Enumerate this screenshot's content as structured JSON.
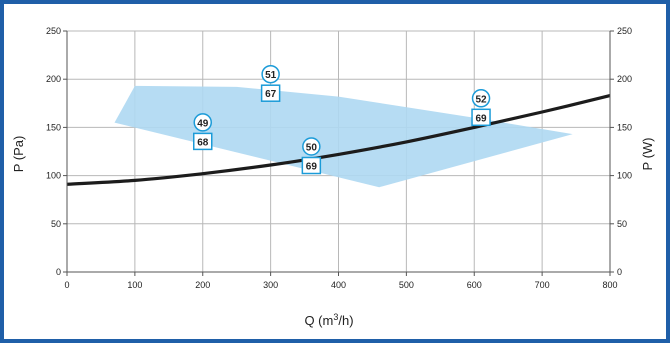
{
  "chart_data": {
    "type": "line",
    "xlabel_main": "Q (m",
    "xlabel_sup": "3",
    "xlabel_tail": "/h)",
    "ylabel_left": "P (Pa)",
    "ylabel_right": "P (W)",
    "xlim": [
      0,
      800
    ],
    "ylim_left": [
      0,
      250
    ],
    "ylim_right": [
      0,
      250
    ],
    "x_ticks": [
      "0",
      "100",
      "200",
      "300",
      "400",
      "500",
      "600",
      "700",
      "800"
    ],
    "y_ticks_left": [
      "0",
      "50",
      "100",
      "150",
      "200",
      "250"
    ],
    "y_ticks_right": [
      "0",
      "50",
      "100",
      "150",
      "200",
      "250"
    ],
    "grid": true,
    "curve": {
      "x": [
        0,
        100,
        200,
        300,
        400,
        500,
        600,
        700,
        800
      ],
      "y": [
        91,
        95,
        102,
        111,
        122,
        135,
        150,
        166,
        183
      ]
    },
    "region": {
      "x": [
        70,
        100,
        250,
        400,
        600,
        745,
        460
      ],
      "y": [
        155,
        193,
        192,
        182,
        160,
        143,
        88
      ]
    },
    "markers": [
      {
        "x": 200,
        "y": 150,
        "circle": "49",
        "box": "68"
      },
      {
        "x": 300,
        "y": 200,
        "circle": "51",
        "box": "67"
      },
      {
        "x": 360,
        "y": 125,
        "circle": "50",
        "box": "69"
      },
      {
        "x": 610,
        "y": 175,
        "circle": "52",
        "box": "69"
      }
    ],
    "colors": {
      "frame": "#1f5fa8",
      "region": "#aed8f2",
      "curve": "#1c1c1c",
      "marker": "#1b9bd8",
      "grid": "#b8b8b8"
    }
  }
}
